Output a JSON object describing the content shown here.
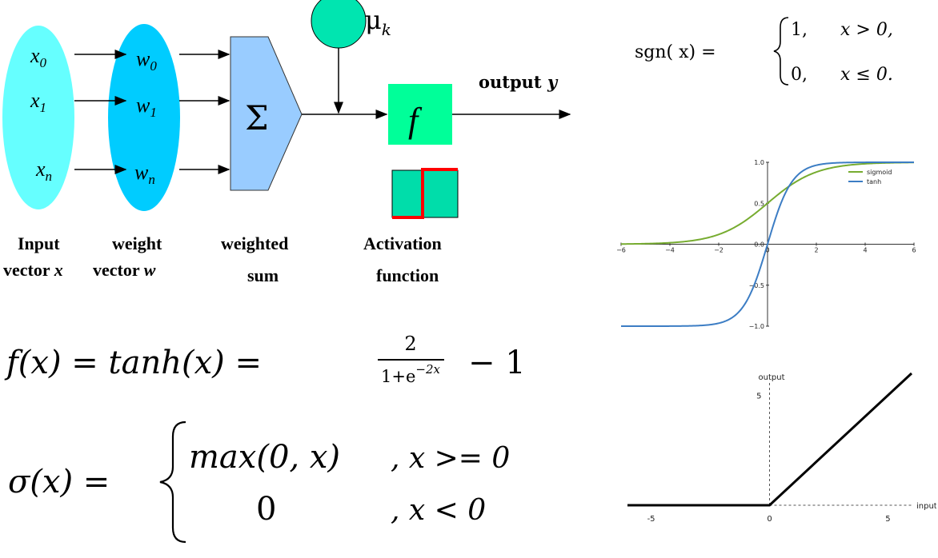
{
  "neuron": {
    "inputs": [
      "x",
      "x",
      "x"
    ],
    "input_subs": [
      "0",
      "1",
      "n"
    ],
    "weights": [
      "w",
      "w",
      "w"
    ],
    "weight_subs": [
      "0",
      "1",
      "n"
    ],
    "sum_symbol": "Σ",
    "bias": "μ",
    "bias_sub": "k",
    "activation_symbol": "f",
    "output_label": "output ",
    "output_var": "y",
    "captions": {
      "input_line1": "Input",
      "input_line2": "vector ",
      "input_var": "x",
      "weight_line1": "weight",
      "weight_line2": "vector ",
      "weight_var": "w",
      "sum_line1": "weighted",
      "sum_line2": "sum",
      "act_line1": "Activation",
      "act_line2": "function"
    },
    "colors": {
      "input_ellipse": "#66FFFF",
      "weight_ellipse": "#00CCFF",
      "sum_block": "#99CCFF",
      "bias_circle": "#00E5B0",
      "activation_box": "#00FF99",
      "step_icon": "#00DDAA",
      "step_line": "#FF0000"
    }
  },
  "formulas": {
    "sgn_lhs": "sgn( x) = ",
    "sgn_case1_val": "1,",
    "sgn_case1_cond": "x > 0,",
    "sgn_case2_val": "0,",
    "sgn_case2_cond": "x ≤ 0.",
    "tanh_lhs": "f(x)  =  tanh(x)  =",
    "tanh_num": "2",
    "tanh_den_base": "1+e",
    "tanh_den_exp": "−2x",
    "tanh_tail": "− 1",
    "relu_lhs": "σ(x) = ",
    "relu_case1_val": "max(0, x)",
    "relu_case1_cond": ", x >= 0",
    "relu_case2_val": "0",
    "relu_case2_cond": ", x < 0"
  },
  "chart_data": [
    {
      "type": "line",
      "x_ticks": [
        "−6",
        "−4",
        "−2",
        "0",
        "2",
        "4",
        "6"
      ],
      "y_ticks": [
        "1.0",
        "0.5",
        "0.0",
        "−0.5",
        "−1.0"
      ],
      "xlim": [
        -6,
        6
      ],
      "ylim": [
        -1,
        1
      ],
      "legend_position": "top-right",
      "series": [
        {
          "name": "sigmoid",
          "function": "1/(1+exp(-x))",
          "color": "#77AC30"
        },
        {
          "name": "tanh",
          "function": "tanh(x)",
          "color": "#3C7DC4"
        }
      ]
    },
    {
      "type": "line",
      "xlabel": "input",
      "ylabel": "output",
      "x_ticks": [
        "-5",
        "0",
        "5"
      ],
      "y_ticks": [
        "5"
      ],
      "xlim": [
        -6,
        6
      ],
      "ylim": [
        0,
        6
      ],
      "series": [
        {
          "function": "max(0, x)",
          "color": "#000000",
          "x": [
            -6,
            0,
            6
          ],
          "y": [
            0,
            0,
            6
          ]
        }
      ]
    }
  ]
}
